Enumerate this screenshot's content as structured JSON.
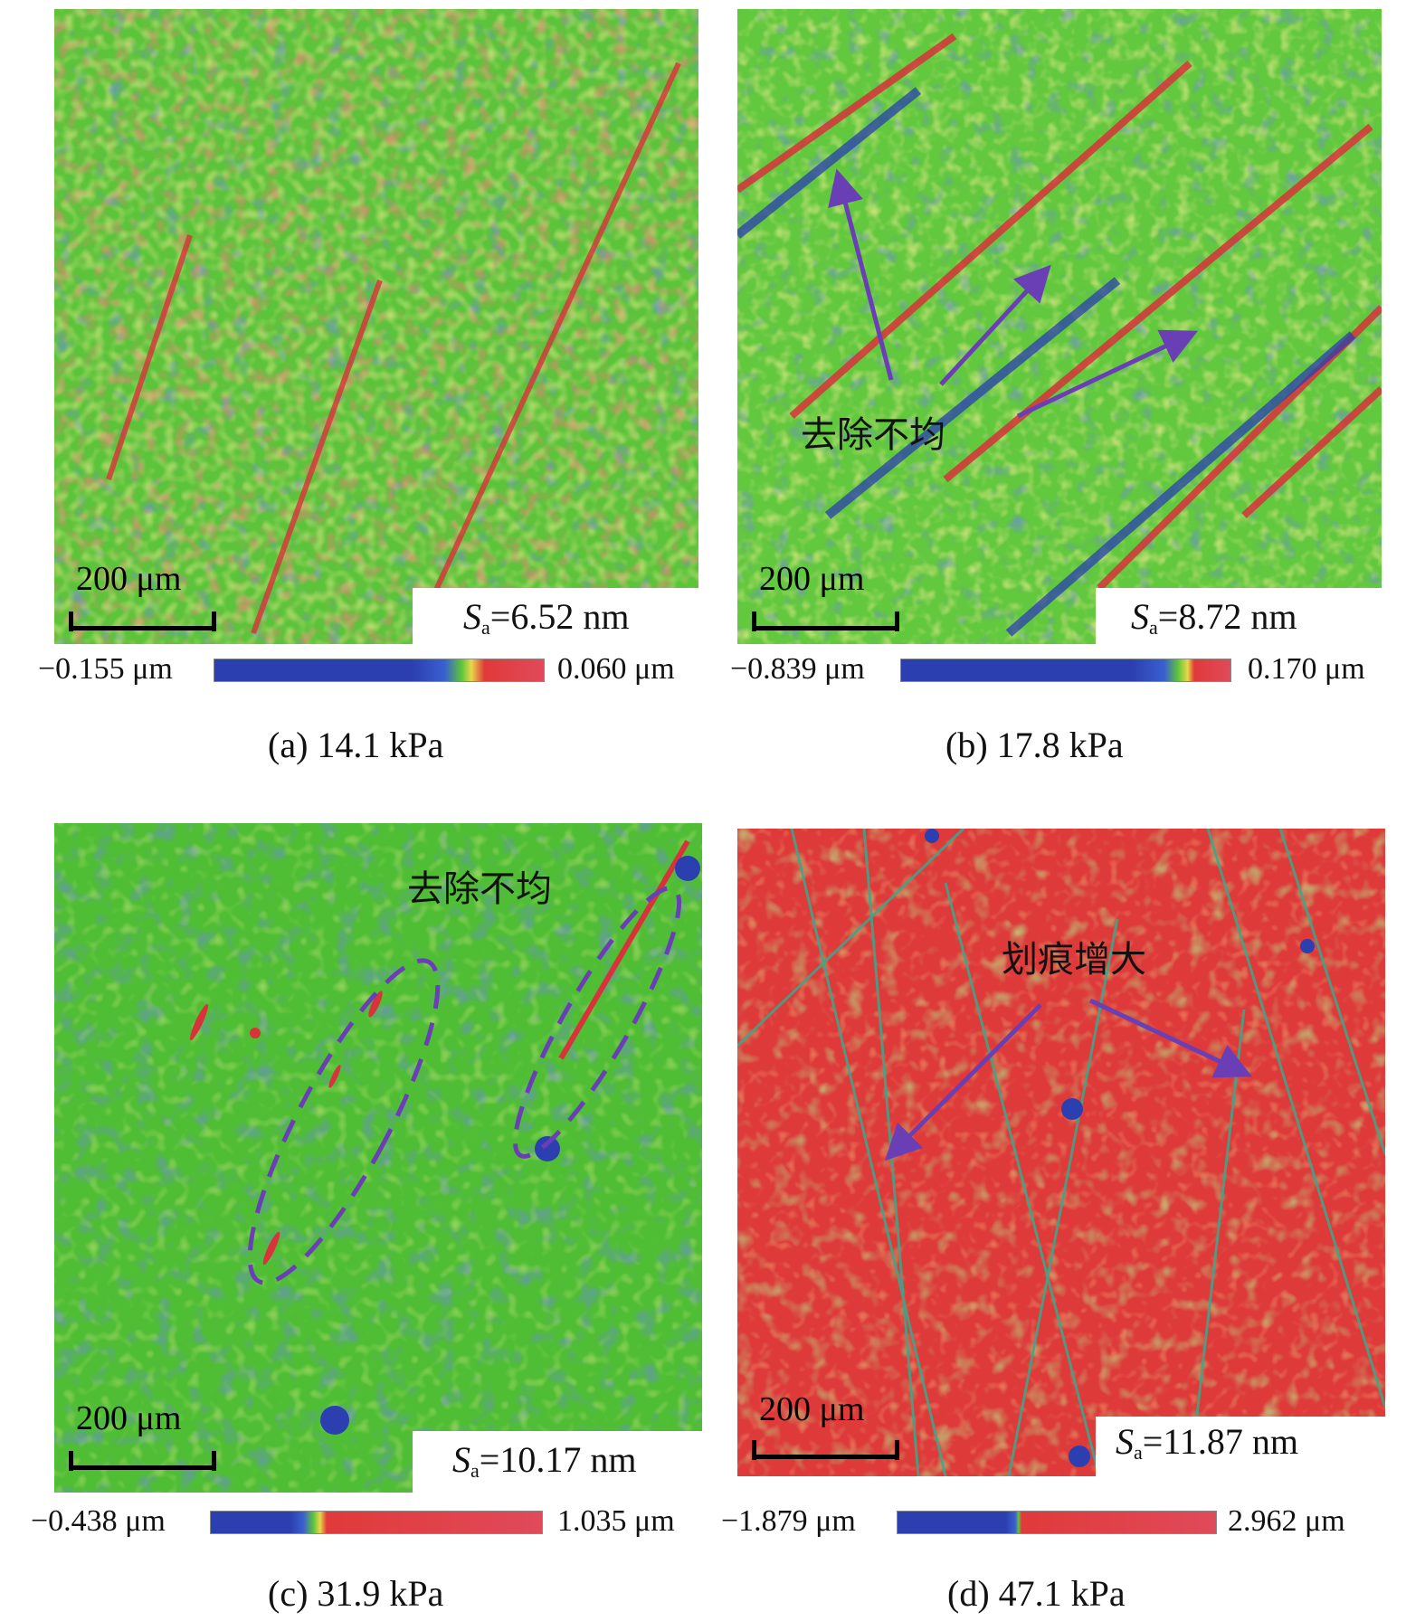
{
  "panels": [
    {
      "caption": "(a) 14.1 kPa",
      "sa_label": "S",
      "sa_sub": "a",
      "sa_value": "=6.52 nm",
      "scale": "200 μm",
      "cb_min": "−0.155 μm",
      "cb_max": "0.060 μm"
    },
    {
      "caption": "(b) 17.8 kPa",
      "sa_label": "S",
      "sa_sub": "a",
      "sa_value": "=8.72 nm",
      "scale": "200 μm",
      "cb_min": "−0.839 μm",
      "cb_max": "0.170 μm",
      "annotation": "去除不均"
    },
    {
      "caption": "(c) 31.9 kPa",
      "sa_label": "S",
      "sa_sub": "a",
      "sa_value": "=10.17 nm",
      "scale": "200 μm",
      "cb_min": "−0.438 μm",
      "cb_max": "1.035 μm",
      "annotation": "去除不均"
    },
    {
      "caption": "(d) 47.1 kPa",
      "sa_label": "S",
      "sa_sub": "a",
      "sa_value": "=11.87 nm",
      "scale": "200 μm",
      "cb_min": "−1.879 μm",
      "cb_max": "2.962 μm",
      "annotation": "划痕增大"
    }
  ],
  "colors": {
    "green": "#5cc43a",
    "blue": "#2b3fb0",
    "red": "#e03a3a",
    "yellow": "#e8d84a",
    "arrow": "#6a3fb5"
  }
}
